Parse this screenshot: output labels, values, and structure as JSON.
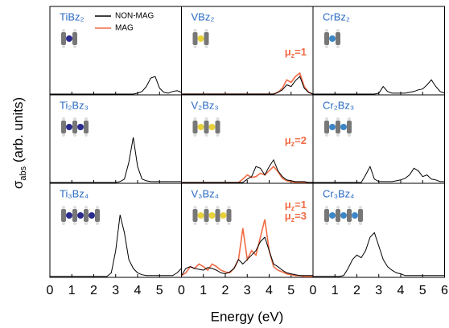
{
  "figure": {
    "ylabel": {
      "symbol": "σ",
      "sub": "abs",
      "text": " (arb. units)"
    },
    "xlabel": "Energy (eV)",
    "legend": [
      {
        "name": "NON-MAG",
        "color": "#000000"
      },
      {
        "name": "MAG",
        "color": "#f26b45"
      }
    ]
  },
  "chart_data": [
    {
      "type": "line",
      "title": "TiBz₂",
      "title_color": "#2b6cc4",
      "x": [
        0,
        0.2,
        0.4,
        0.6,
        0.8,
        1,
        1.2,
        1.4,
        1.6,
        1.8,
        2,
        2.2,
        2.4,
        2.6,
        2.8,
        3,
        3.2,
        3.4,
        3.6,
        3.8,
        4,
        4.2,
        4.4,
        4.6,
        4.8,
        5,
        5.2,
        5.4,
        5.6,
        5.8,
        6
      ],
      "xlim": [
        0,
        6
      ],
      "xticks": [
        0,
        1,
        2,
        3,
        4,
        5
      ],
      "ylim": [
        0,
        1
      ],
      "series": [
        {
          "name": "NON-MAG",
          "color": "#000000",
          "values": [
            0.01,
            0.01,
            0.01,
            0.01,
            0.01,
            0.01,
            0.01,
            0.01,
            0.01,
            0.01,
            0.01,
            0.01,
            0.01,
            0.01,
            0.01,
            0.01,
            0.01,
            0.01,
            0.01,
            0.01,
            0.02,
            0.04,
            0.1,
            0.2,
            0.22,
            0.08,
            0.03,
            0.02,
            0.04,
            0.05,
            0.03
          ]
        }
      ]
    },
    {
      "type": "line",
      "title": "VBz₂",
      "title_color": "#2b6cc4",
      "x": [
        0,
        0.2,
        0.4,
        0.6,
        0.8,
        1,
        1.2,
        1.4,
        1.6,
        1.8,
        2,
        2.2,
        2.4,
        2.6,
        2.8,
        3,
        3.2,
        3.4,
        3.6,
        3.8,
        4,
        4.2,
        4.4,
        4.6,
        4.8,
        5,
        5.2,
        5.4,
        5.6,
        5.8,
        6
      ],
      "xlim": [
        0,
        6
      ],
      "xticks": [
        0,
        1,
        2,
        3,
        4,
        5
      ],
      "ylim": [
        0,
        1
      ],
      "annotations": [
        {
          "symbol": "μ",
          "sub": "z",
          "text": "=1",
          "color": "#f26b45"
        }
      ],
      "series": [
        {
          "name": "NON-MAG",
          "color": "#000000",
          "values": [
            0.01,
            0.01,
            0.01,
            0.01,
            0.01,
            0.01,
            0.01,
            0.01,
            0.01,
            0.01,
            0.01,
            0.01,
            0.01,
            0.01,
            0.01,
            0.01,
            0.01,
            0.01,
            0.01,
            0.01,
            0.01,
            0.01,
            0.03,
            0.06,
            0.12,
            0.1,
            0.17,
            0.22,
            0.08,
            0.03,
            0.01
          ]
        },
        {
          "name": "MAG",
          "color": "#f26b45",
          "values": [
            0.01,
            0.01,
            0.01,
            0.01,
            0.01,
            0.01,
            0.01,
            0.01,
            0.01,
            0.01,
            0.01,
            0.01,
            0.01,
            0.01,
            0.01,
            0.01,
            0.01,
            0.01,
            0.01,
            0.01,
            0.01,
            0.01,
            0.03,
            0.08,
            0.18,
            0.15,
            0.22,
            0.26,
            0.1,
            0.03,
            0.01
          ]
        }
      ]
    },
    {
      "type": "line",
      "title": "CrBz₂",
      "title_color": "#2b6cc4",
      "x": [
        0,
        0.2,
        0.4,
        0.6,
        0.8,
        1,
        1.2,
        1.4,
        1.6,
        1.8,
        2,
        2.2,
        2.4,
        2.6,
        2.8,
        3,
        3.2,
        3.4,
        3.6,
        3.8,
        4,
        4.2,
        4.4,
        4.6,
        4.8,
        5,
        5.2,
        5.4,
        5.6,
        5.8,
        6
      ],
      "xlim": [
        0,
        6
      ],
      "xticks": [
        0,
        1,
        2,
        3,
        4,
        5,
        6
      ],
      "ylim": [
        0,
        1
      ],
      "series": [
        {
          "name": "NON-MAG",
          "color": "#000000",
          "values": [
            0.01,
            0.01,
            0.01,
            0.01,
            0.01,
            0.01,
            0.01,
            0.01,
            0.01,
            0.01,
            0.01,
            0.01,
            0.01,
            0.01,
            0.01,
            0.02,
            0.1,
            0.04,
            0.02,
            0.02,
            0.02,
            0.02,
            0.03,
            0.04,
            0.06,
            0.07,
            0.12,
            0.18,
            0.1,
            0.04,
            0.02
          ]
        }
      ]
    },
    {
      "type": "line",
      "title": "Ti₂Bz₃",
      "title_color": "#2b6cc4",
      "x": [
        0,
        0.2,
        0.4,
        0.6,
        0.8,
        1,
        1.2,
        1.4,
        1.6,
        1.8,
        2,
        2.2,
        2.4,
        2.6,
        2.8,
        3,
        3.2,
        3.4,
        3.6,
        3.8,
        4,
        4.2,
        4.4,
        4.6,
        4.8,
        5,
        5.2,
        5.4,
        5.6,
        5.8,
        6
      ],
      "xlim": [
        0,
        6
      ],
      "xticks": [
        0,
        1,
        2,
        3,
        4,
        5
      ],
      "ylim": [
        0,
        1
      ],
      "series": [
        {
          "name": "NON-MAG",
          "color": "#000000",
          "values": [
            0.01,
            0.01,
            0.01,
            0.01,
            0.01,
            0.01,
            0.01,
            0.01,
            0.01,
            0.01,
            0.01,
            0.01,
            0.01,
            0.01,
            0.01,
            0.01,
            0.02,
            0.05,
            0.25,
            0.55,
            0.2,
            0.05,
            0.03,
            0.02,
            0.02,
            0.02,
            0.02,
            0.02,
            0.02,
            0.02,
            0.02
          ]
        }
      ]
    },
    {
      "type": "line",
      "title": "V₂Bz₃",
      "title_color": "#2b6cc4",
      "x": [
        0,
        0.2,
        0.4,
        0.6,
        0.8,
        1,
        1.2,
        1.4,
        1.6,
        1.8,
        2,
        2.2,
        2.4,
        2.6,
        2.8,
        3,
        3.2,
        3.4,
        3.6,
        3.8,
        4,
        4.2,
        4.4,
        4.6,
        4.8,
        5,
        5.2,
        5.4,
        5.6,
        5.8,
        6
      ],
      "xlim": [
        0,
        6
      ],
      "xticks": [
        0,
        1,
        2,
        3,
        4,
        5
      ],
      "ylim": [
        0,
        1
      ],
      "annotations": [
        {
          "symbol": "μ",
          "sub": "z",
          "text": "=2",
          "color": "#f26b45"
        }
      ],
      "series": [
        {
          "name": "NON-MAG",
          "color": "#000000",
          "values": [
            0.01,
            0.01,
            0.01,
            0.01,
            0.01,
            0.01,
            0.01,
            0.01,
            0.01,
            0.01,
            0.01,
            0.01,
            0.01,
            0.01,
            0.01,
            0.05,
            0.08,
            0.2,
            0.18,
            0.1,
            0.2,
            0.28,
            0.15,
            0.08,
            0.04,
            0.03,
            0.02,
            0.02,
            0.02,
            0.01,
            0.01
          ]
        },
        {
          "name": "MAG",
          "color": "#f26b45",
          "values": [
            0.01,
            0.01,
            0.01,
            0.01,
            0.01,
            0.01,
            0.01,
            0.01,
            0.01,
            0.01,
            0.01,
            0.01,
            0.01,
            0.01,
            0.05,
            0.1,
            0.07,
            0.08,
            0.12,
            0.1,
            0.15,
            0.2,
            0.14,
            0.06,
            0.03,
            0.02,
            0.01,
            0.01,
            0.01,
            0.01,
            0.01
          ]
        }
      ]
    },
    {
      "type": "line",
      "title": "Cr₂Bz₃",
      "title_color": "#2b6cc4",
      "x": [
        0,
        0.2,
        0.4,
        0.6,
        0.8,
        1,
        1.2,
        1.4,
        1.6,
        1.8,
        2,
        2.2,
        2.4,
        2.6,
        2.8,
        3,
        3.2,
        3.4,
        3.6,
        3.8,
        4,
        4.2,
        4.4,
        4.6,
        4.8,
        5,
        5.2,
        5.4,
        5.6,
        5.8,
        6
      ],
      "xlim": [
        0,
        6
      ],
      "xticks": [
        0,
        1,
        2,
        3,
        4,
        5,
        6
      ],
      "ylim": [
        0,
        1
      ],
      "series": [
        {
          "name": "NON-MAG",
          "color": "#000000",
          "values": [
            0.01,
            0.01,
            0.01,
            0.01,
            0.01,
            0.01,
            0.01,
            0.01,
            0.01,
            0.01,
            0.01,
            0.01,
            0.1,
            0.2,
            0.05,
            0.02,
            0.02,
            0.02,
            0.02,
            0.03,
            0.04,
            0.06,
            0.1,
            0.18,
            0.15,
            0.08,
            0.1,
            0.05,
            0.04,
            0.02,
            0.02
          ]
        }
      ]
    },
    {
      "type": "line",
      "title": "Ti₃Bz₄",
      "title_color": "#2b6cc4",
      "x": [
        0,
        0.2,
        0.4,
        0.6,
        0.8,
        1,
        1.2,
        1.4,
        1.6,
        1.8,
        2,
        2.2,
        2.4,
        2.6,
        2.8,
        3,
        3.2,
        3.4,
        3.6,
        3.8,
        4,
        4.2,
        4.4,
        4.6,
        4.8,
        5,
        5.2,
        5.4,
        5.6,
        5.8,
        6
      ],
      "xlim": [
        0,
        6
      ],
      "xticks": [
        0,
        1,
        2,
        3,
        4,
        5
      ],
      "ylim": [
        0,
        1
      ],
      "series": [
        {
          "name": "NON-MAG",
          "color": "#000000",
          "values": [
            0.01,
            0.01,
            0.01,
            0.01,
            0.01,
            0.01,
            0.01,
            0.01,
            0.01,
            0.01,
            0.01,
            0.01,
            0.01,
            0.01,
            0.05,
            0.3,
            0.7,
            0.5,
            0.2,
            0.1,
            0.05,
            0.03,
            0.02,
            0.02,
            0.02,
            0.02,
            0.02,
            0.02,
            0.02,
            0.05,
            0.1
          ]
        }
      ]
    },
    {
      "type": "line",
      "title": "V₃Bz₄",
      "title_color": "#2b6cc4",
      "x": [
        0,
        0.2,
        0.4,
        0.6,
        0.8,
        1,
        1.2,
        1.4,
        1.6,
        1.8,
        2,
        2.2,
        2.4,
        2.6,
        2.8,
        3,
        3.2,
        3.4,
        3.6,
        3.8,
        4,
        4.2,
        4.4,
        4.6,
        4.8,
        5,
        5.2,
        5.4,
        5.6,
        5.8,
        6
      ],
      "xlim": [
        0,
        6
      ],
      "xticks": [
        0,
        1,
        2,
        3,
        4,
        5
      ],
      "ylim": [
        0,
        1
      ],
      "annotations": [
        {
          "symbol": "μ",
          "sub": "z",
          "text": "=1",
          "color": "#f26b45"
        },
        {
          "symbol": "μ",
          "sub": "z",
          "text": "=3",
          "color": "#f26b45"
        }
      ],
      "series": [
        {
          "name": "NON-MAG",
          "color": "#000000",
          "values": [
            0.02,
            0.1,
            0.12,
            0.1,
            0.09,
            0.08,
            0.11,
            0.1,
            0.08,
            0.05,
            0.04,
            0.06,
            0.1,
            0.2,
            0.15,
            0.2,
            0.25,
            0.3,
            0.4,
            0.45,
            0.3,
            0.15,
            0.12,
            0.08,
            0.05,
            0.04,
            0.03,
            0.02,
            0.02,
            0.02,
            0.02
          ]
        },
        {
          "name": "MAG",
          "color": "#f26b45",
          "values": [
            0.02,
            0.05,
            0.12,
            0.1,
            0.15,
            0.12,
            0.08,
            0.15,
            0.12,
            0.08,
            0.06,
            0.05,
            0.1,
            0.2,
            0.55,
            0.2,
            0.3,
            0.25,
            0.45,
            0.65,
            0.3,
            0.12,
            0.08,
            0.06,
            0.04,
            0.03,
            0.02,
            0.02,
            0.01,
            0.01,
            0.01
          ]
        }
      ]
    },
    {
      "type": "line",
      "title": "Cr₃Bz₄",
      "title_color": "#2b6cc4",
      "x": [
        0,
        0.2,
        0.4,
        0.6,
        0.8,
        1,
        1.2,
        1.4,
        1.6,
        1.8,
        2,
        2.2,
        2.4,
        2.6,
        2.8,
        3,
        3.2,
        3.4,
        3.6,
        3.8,
        4,
        4.2,
        4.4,
        4.6,
        4.8,
        5,
        5.2,
        5.4,
        5.6,
        5.8,
        6
      ],
      "xlim": [
        0,
        6
      ],
      "xticks": [
        0,
        1,
        2,
        3,
        4,
        5,
        6
      ],
      "ylim": [
        0,
        1
      ],
      "series": [
        {
          "name": "NON-MAG",
          "color": "#000000",
          "values": [
            0.01,
            0.01,
            0.01,
            0.01,
            0.01,
            0.01,
            0.01,
            0.02,
            0.1,
            0.2,
            0.25,
            0.22,
            0.3,
            0.45,
            0.5,
            0.35,
            0.2,
            0.12,
            0.08,
            0.05,
            0.04,
            0.02,
            0.02,
            0.02,
            0.02,
            0.02,
            0.02,
            0.02,
            0.02,
            0.02,
            0.02
          ]
        }
      ]
    }
  ]
}
